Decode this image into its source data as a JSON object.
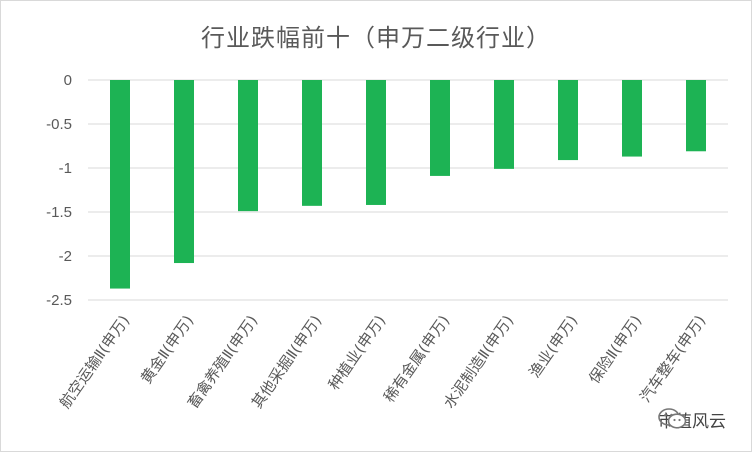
{
  "chart_data": {
    "type": "bar",
    "title": "行业跌幅前十（申万二级行业）",
    "categories": [
      "航空运输Ⅱ(申万)",
      "黄金Ⅱ(申万)",
      "畜禽养殖Ⅱ(申万)",
      "其他采掘Ⅱ(申万)",
      "种植业(申万)",
      "稀有金属(申万)",
      "水泥制造Ⅱ(申万)",
      "渔业(申万)",
      "保险Ⅱ(申万)",
      "汽车整车(申万)"
    ],
    "values": [
      -2.37,
      -2.08,
      -1.49,
      -1.43,
      -1.42,
      -1.09,
      -1.01,
      -0.91,
      -0.87,
      -0.81
    ],
    "yticks": [
      "0",
      "-0.5",
      "-1",
      "-1.5",
      "-2",
      "-2.5"
    ],
    "ylim": [
      -2.5,
      0
    ],
    "bar_color": "#1db354",
    "grid": true,
    "xlabel": "",
    "ylabel": ""
  },
  "watermark": {
    "text": "市值风云",
    "icon": "wechat-icon"
  }
}
